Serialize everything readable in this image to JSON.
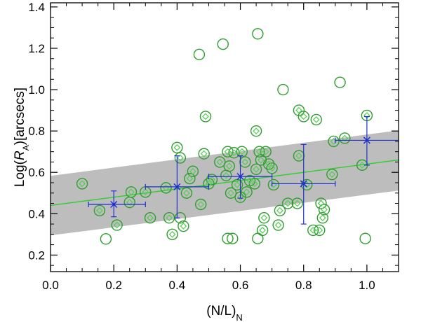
{
  "chart_data": {
    "type": "scatter",
    "xlabel": "(N/L)N",
    "ylabel": "Log(RA)[arcsecs]",
    "xlim": [
      0.0,
      1.1
    ],
    "ylim": [
      0.12,
      1.42
    ],
    "x_ticks": [
      0.0,
      0.2,
      0.4,
      0.6,
      0.8,
      1.0
    ],
    "x_tick_labels": [
      "0.0",
      "0.2",
      "0.4",
      "0.6",
      "0.8",
      "1.0"
    ],
    "y_ticks": [
      0.2,
      0.4,
      0.6,
      0.8,
      1.0,
      1.2,
      1.4
    ],
    "y_tick_labels": [
      "0.2",
      "0.4",
      "0.6",
      "0.8",
      "1.0",
      "1.2",
      "1.4"
    ],
    "colors": {
      "circle": "#2e9e2e",
      "diamond": "#55cc55",
      "fit_line": "#33cc33",
      "band": "#bdbdbd",
      "binned": "#1f2fd0"
    },
    "fit_line": {
      "name": "linear fit",
      "x": [
        0.0,
        1.1
      ],
      "y": [
        0.44,
        0.66
      ]
    },
    "band": {
      "name": "scatter band",
      "x": [
        0.0,
        1.1
      ],
      "lower": [
        0.295,
        0.512
      ],
      "upper": [
        0.583,
        0.803
      ]
    },
    "series": [
      {
        "name": "galaxies (circled)",
        "marker": "open-circle",
        "points": [
          [
            0.1,
            0.545
          ],
          [
            0.155,
            0.415
          ],
          [
            0.175,
            0.278
          ],
          [
            0.21,
            0.345
          ],
          [
            0.25,
            0.455
          ],
          [
            0.255,
            0.505
          ],
          [
            0.3,
            0.505
          ],
          [
            0.315,
            0.38
          ],
          [
            0.365,
            0.525
          ],
          [
            0.375,
            0.38
          ],
          [
            0.385,
            0.3
          ],
          [
            0.4,
            0.72
          ],
          [
            0.41,
            0.38
          ],
          [
            0.41,
            0.67
          ],
          [
            0.42,
            0.34
          ],
          [
            0.43,
            0.5
          ],
          [
            0.44,
            0.57
          ],
          [
            0.45,
            0.605
          ],
          [
            0.47,
            1.17
          ],
          [
            0.475,
            0.445
          ],
          [
            0.485,
            0.69
          ],
          [
            0.49,
            0.87
          ],
          [
            0.5,
            0.545
          ],
          [
            0.51,
            0.565
          ],
          [
            0.535,
            0.65
          ],
          [
            0.545,
            1.22
          ],
          [
            0.555,
            0.585
          ],
          [
            0.56,
            0.7
          ],
          [
            0.56,
            0.28
          ],
          [
            0.565,
            0.63
          ],
          [
            0.57,
            0.5
          ],
          [
            0.575,
            0.28
          ],
          [
            0.58,
            0.695
          ],
          [
            0.59,
            0.54
          ],
          [
            0.6,
            0.48
          ],
          [
            0.605,
            0.7
          ],
          [
            0.615,
            0.65
          ],
          [
            0.62,
            0.505
          ],
          [
            0.63,
            0.56
          ],
          [
            0.645,
            0.545
          ],
          [
            0.65,
            0.8
          ],
          [
            0.65,
            0.615
          ],
          [
            0.655,
            1.27
          ],
          [
            0.655,
            0.28
          ],
          [
            0.66,
            0.7
          ],
          [
            0.665,
            0.66
          ],
          [
            0.67,
            0.32
          ],
          [
            0.675,
            0.38
          ],
          [
            0.68,
            0.7
          ],
          [
            0.69,
            0.64
          ],
          [
            0.7,
            0.62
          ],
          [
            0.705,
            0.54
          ],
          [
            0.72,
            0.345
          ],
          [
            0.725,
            0.415
          ],
          [
            0.735,
            1.0
          ],
          [
            0.75,
            0.45
          ],
          [
            0.78,
            0.45
          ],
          [
            0.785,
            0.9
          ],
          [
            0.785,
            0.68
          ],
          [
            0.8,
            0.87
          ],
          [
            0.81,
            0.54
          ],
          [
            0.83,
            0.32
          ],
          [
            0.84,
            0.855
          ],
          [
            0.85,
            0.32
          ],
          [
            0.855,
            0.45
          ],
          [
            0.86,
            0.38
          ],
          [
            0.865,
            0.42
          ],
          [
            0.89,
            0.59
          ],
          [
            0.895,
            0.75
          ],
          [
            0.915,
            1.035
          ],
          [
            0.93,
            0.765
          ],
          [
            0.985,
            0.635
          ],
          [
            0.995,
            0.28
          ],
          [
            1.0,
            0.875
          ]
        ],
        "diamond_points": [
          [
            0.1,
            0.545
          ],
          [
            0.155,
            0.415
          ],
          [
            0.21,
            0.345
          ],
          [
            0.25,
            0.455
          ],
          [
            0.255,
            0.505
          ],
          [
            0.3,
            0.505
          ],
          [
            0.315,
            0.38
          ],
          [
            0.365,
            0.525
          ],
          [
            0.375,
            0.38
          ],
          [
            0.385,
            0.3
          ],
          [
            0.4,
            0.72
          ],
          [
            0.41,
            0.67
          ],
          [
            0.42,
            0.34
          ],
          [
            0.43,
            0.5
          ],
          [
            0.44,
            0.57
          ],
          [
            0.45,
            0.605
          ],
          [
            0.475,
            0.445
          ],
          [
            0.485,
            0.69
          ],
          [
            0.49,
            0.87
          ],
          [
            0.5,
            0.545
          ],
          [
            0.51,
            0.565
          ],
          [
            0.535,
            0.65
          ],
          [
            0.555,
            0.585
          ],
          [
            0.56,
            0.7
          ],
          [
            0.565,
            0.63
          ],
          [
            0.57,
            0.5
          ],
          [
            0.58,
            0.695
          ],
          [
            0.59,
            0.54
          ],
          [
            0.6,
            0.48
          ],
          [
            0.605,
            0.7
          ],
          [
            0.615,
            0.65
          ],
          [
            0.62,
            0.505
          ],
          [
            0.63,
            0.56
          ],
          [
            0.645,
            0.545
          ],
          [
            0.65,
            0.8
          ],
          [
            0.65,
            0.615
          ],
          [
            0.66,
            0.7
          ],
          [
            0.665,
            0.66
          ],
          [
            0.67,
            0.32
          ],
          [
            0.675,
            0.38
          ],
          [
            0.68,
            0.7
          ],
          [
            0.69,
            0.64
          ],
          [
            0.7,
            0.62
          ],
          [
            0.705,
            0.54
          ],
          [
            0.72,
            0.345
          ],
          [
            0.725,
            0.415
          ],
          [
            0.75,
            0.45
          ],
          [
            0.78,
            0.45
          ],
          [
            0.785,
            0.9
          ],
          [
            0.785,
            0.68
          ],
          [
            0.8,
            0.87
          ],
          [
            0.81,
            0.54
          ],
          [
            0.83,
            0.32
          ],
          [
            0.84,
            0.855
          ],
          [
            0.85,
            0.32
          ],
          [
            0.855,
            0.45
          ],
          [
            0.86,
            0.38
          ],
          [
            0.865,
            0.42
          ],
          [
            0.89,
            0.59
          ],
          [
            0.895,
            0.75
          ],
          [
            0.93,
            0.765
          ],
          [
            0.985,
            0.635
          ],
          [
            1.0,
            0.875
          ]
        ]
      },
      {
        "name": "binned means",
        "marker": "cross-with-errorbars",
        "points": [
          {
            "x": 0.2,
            "y": 0.445,
            "xerr": [
              0.12,
              0.3
            ],
            "yerr": [
              0.385,
              0.51
            ]
          },
          {
            "x": 0.4,
            "y": 0.53,
            "xerr": [
              0.3,
              0.5
            ],
            "yerr": [
              0.38,
              0.68
            ]
          },
          {
            "x": 0.6,
            "y": 0.58,
            "xerr": [
              0.5,
              0.7
            ],
            "yerr": [
              0.475,
              0.68
            ]
          },
          {
            "x": 0.8,
            "y": 0.545,
            "xerr": [
              0.7,
              0.9
            ],
            "yerr": [
              0.35,
              0.735
            ]
          },
          {
            "x": 1.0,
            "y": 0.755,
            "xerr": [
              0.9,
              1.1
            ],
            "yerr": [
              0.635,
              0.87
            ]
          }
        ]
      }
    ]
  }
}
